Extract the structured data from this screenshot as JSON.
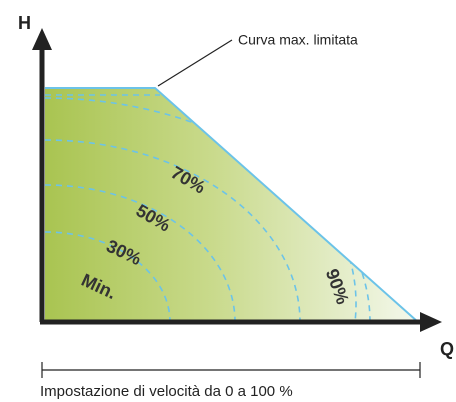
{
  "axes": {
    "y_label": "H",
    "x_label": "Q"
  },
  "annotation": "Curva max. limitata",
  "curve_labels": [
    "Min.",
    "30%",
    "50%",
    "70%",
    "90%"
  ],
  "footer": "Impostazione di velocità da 0 a 100 %"
}
